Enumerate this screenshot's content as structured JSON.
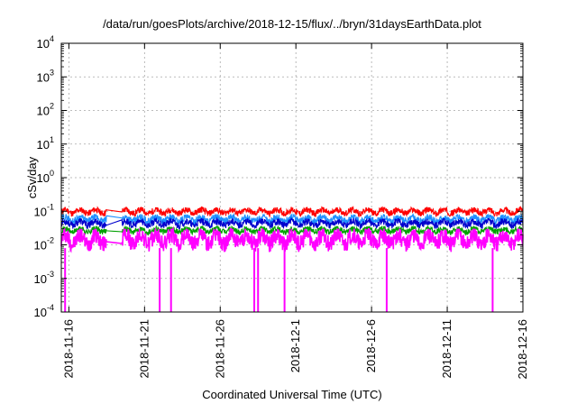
{
  "chart_data": {
    "type": "line",
    "title": "/data/run/goesPlots/archive/2018-12-15/flux/../bryn/31daysEarthData.plot",
    "xlabel": "Coordinated Universal Time (UTC)",
    "ylabel": "cSv/day",
    "y_scale": "log",
    "ylim": [
      0.0001,
      10000
    ],
    "xlim": [
      "2018-11-15T12:00",
      "2018-12-16T00:00"
    ],
    "grid": true,
    "legend": "none",
    "y_ticks": [
      {
        "base": "10",
        "exp": "-4"
      },
      {
        "base": "10",
        "exp": "-3"
      },
      {
        "base": "10",
        "exp": "-2"
      },
      {
        "base": "10",
        "exp": "-1"
      },
      {
        "base": "10",
        "exp": "0"
      },
      {
        "base": "10",
        "exp": "1"
      },
      {
        "base": "10",
        "exp": "2"
      },
      {
        "base": "10",
        "exp": "3"
      },
      {
        "base": "10",
        "exp": "4"
      }
    ],
    "x_ticks": [
      "2018-11-16",
      "2018-11-21",
      "2018-11-26",
      "2018-12-1",
      "2018-12-6",
      "2018-12-11",
      "2018-12-16"
    ],
    "data_gap": {
      "start": "2018-11-18T12:00",
      "end": "2018-11-19T12:00"
    },
    "series": [
      {
        "color": "#ff0000",
        "typical_low": 0.07,
        "typical_high": 0.13
      },
      {
        "color": "#1e90ff",
        "typical_low": 0.04,
        "typical_high": 0.08
      },
      {
        "color": "#0000cd",
        "typical_low": 0.03,
        "typical_high": 0.06
      },
      {
        "color": "#00a000",
        "typical_low": 0.02,
        "typical_high": 0.035
      },
      {
        "color": "#ff00ff",
        "typical_low": 0.006,
        "typical_high": 0.03
      }
    ],
    "dropouts": [
      "2018-11-15T18:00",
      "2018-11-22T00:00",
      "2018-11-22T18:00",
      "2018-11-28T06:00",
      "2018-11-28T12:00",
      "2018-11-30T06:00",
      "2018-12-07T00:00",
      "2018-12-14T00:00"
    ]
  }
}
